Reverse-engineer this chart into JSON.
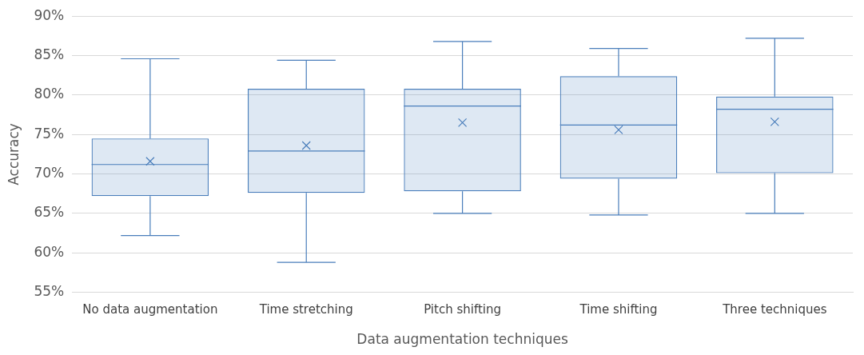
{
  "chart_data": {
    "type": "box",
    "xlabel": "Data augmentation techniques",
    "ylabel": "Accuracy",
    "categories": [
      "No data augmentation",
      "Time stretching",
      "Pitch shifting",
      "Time shifting",
      "Three techniques"
    ],
    "color": "#4a7ebb",
    "boxes": [
      {
        "low": 62.2,
        "q1": 67.2,
        "median": 71.2,
        "q3": 74.5,
        "high": 84.6,
        "mean": 71.6
      },
      {
        "low": 58.8,
        "q1": 67.6,
        "median": 72.9,
        "q3": 80.8,
        "high": 84.4,
        "mean": 73.6
      },
      {
        "low": 65.0,
        "q1": 67.8,
        "median": 78.6,
        "q3": 80.8,
        "high": 86.8,
        "mean": 76.5
      },
      {
        "low": 64.8,
        "q1": 69.4,
        "median": 76.2,
        "q3": 82.4,
        "high": 85.9,
        "mean": 75.6
      },
      {
        "low": 65.0,
        "q1": 70.1,
        "median": 78.2,
        "q3": 79.8,
        "high": 87.2,
        "mean": 76.6
      }
    ],
    "ylim": [
      55,
      90
    ],
    "yticks": [
      {
        "value": 55,
        "label": "55%"
      },
      {
        "value": 60,
        "label": "60%"
      },
      {
        "value": 65,
        "label": "65%"
      },
      {
        "value": 70,
        "label": "70%"
      },
      {
        "value": 75,
        "label": "75%"
      },
      {
        "value": 80,
        "label": "80%"
      },
      {
        "value": 85,
        "label": "85%"
      },
      {
        "value": 90,
        "label": "90%"
      }
    ],
    "grid": "y",
    "marker": "cross"
  }
}
